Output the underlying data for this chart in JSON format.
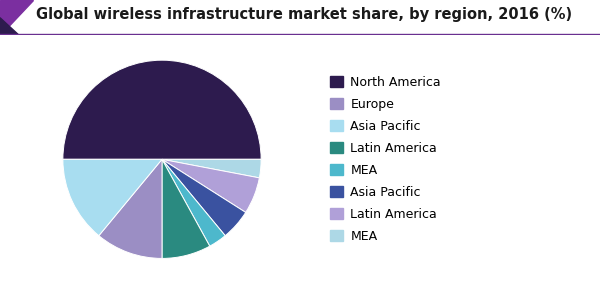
{
  "title": "Global wireless infrastructure market share, by region, 2016 (%)",
  "slices": [
    {
      "label": "North America",
      "value": 50,
      "color": "#2d1b4e"
    },
    {
      "label": "MEA",
      "value": 3,
      "color": "#add8e6"
    },
    {
      "label": "Latin America",
      "value": 6,
      "color": "#b0a0d8"
    },
    {
      "label": "Asia Pacific",
      "value": 5,
      "color": "#3a52a0"
    },
    {
      "label": "MEA",
      "value": 3,
      "color": "#4db8cc"
    },
    {
      "label": "Latin America",
      "value": 8,
      "color": "#2a8a80"
    },
    {
      "label": "Europe",
      "value": 11,
      "color": "#9b8ec4"
    },
    {
      "label": "Asia Pacific",
      "value": 14,
      "color": "#a8ddf0"
    }
  ],
  "title_fontsize": 10.5,
  "legend_fontsize": 9,
  "bg_color": "#ffffff",
  "header_line_color": "#6a3090",
  "corner_color1": "#7b2fa0",
  "corner_color2": "#2d1b4e",
  "legend_order": [
    0,
    6,
    7,
    5,
    4,
    3,
    2,
    1
  ]
}
